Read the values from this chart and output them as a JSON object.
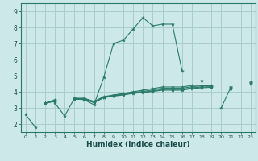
{
  "background_color": "#cce8e8",
  "grid_color": "#aacccc",
  "line_color": "#2a7a6a",
  "spine_color": "#2a7a6a",
  "xlabel": "Humidex (Indice chaleur)",
  "xlim": [
    -0.5,
    23.5
  ],
  "ylim": [
    1.5,
    9.5
  ],
  "yticks": [
    2,
    3,
    4,
    5,
    6,
    7,
    8,
    9
  ],
  "xticks": [
    0,
    1,
    2,
    3,
    4,
    5,
    6,
    7,
    8,
    9,
    10,
    11,
    12,
    13,
    14,
    15,
    16,
    17,
    18,
    19,
    20,
    21,
    22,
    23
  ],
  "series": [
    [
      2.6,
      1.8,
      null,
      3.3,
      2.5,
      3.6,
      3.5,
      3.2,
      4.9,
      7.0,
      7.2,
      7.9,
      8.6,
      8.1,
      8.2,
      8.2,
      5.3,
      null,
      4.7,
      null,
      3.0,
      4.3,
      null,
      4.6
    ],
    [
      null,
      null,
      3.3,
      3.5,
      null,
      3.6,
      3.6,
      3.4,
      3.7,
      3.8,
      3.9,
      4.0,
      4.1,
      4.2,
      4.3,
      4.3,
      4.3,
      4.4,
      4.4,
      4.4,
      null,
      4.3,
      null,
      4.6
    ],
    [
      null,
      null,
      3.3,
      3.45,
      null,
      3.57,
      3.57,
      3.37,
      3.67,
      3.77,
      3.87,
      3.97,
      4.02,
      4.12,
      4.22,
      4.22,
      4.22,
      4.32,
      4.37,
      4.37,
      null,
      4.27,
      null,
      4.57
    ],
    [
      null,
      null,
      3.3,
      3.42,
      null,
      3.55,
      3.55,
      3.35,
      3.65,
      3.75,
      3.83,
      3.93,
      3.98,
      4.05,
      4.15,
      4.15,
      4.15,
      4.25,
      4.3,
      4.32,
      null,
      4.22,
      null,
      4.53
    ],
    [
      null,
      null,
      3.3,
      3.4,
      null,
      3.53,
      3.53,
      3.33,
      3.63,
      3.73,
      3.8,
      3.9,
      3.95,
      4.02,
      4.1,
      4.1,
      4.1,
      4.2,
      4.25,
      4.28,
      null,
      4.18,
      null,
      4.5
    ]
  ]
}
